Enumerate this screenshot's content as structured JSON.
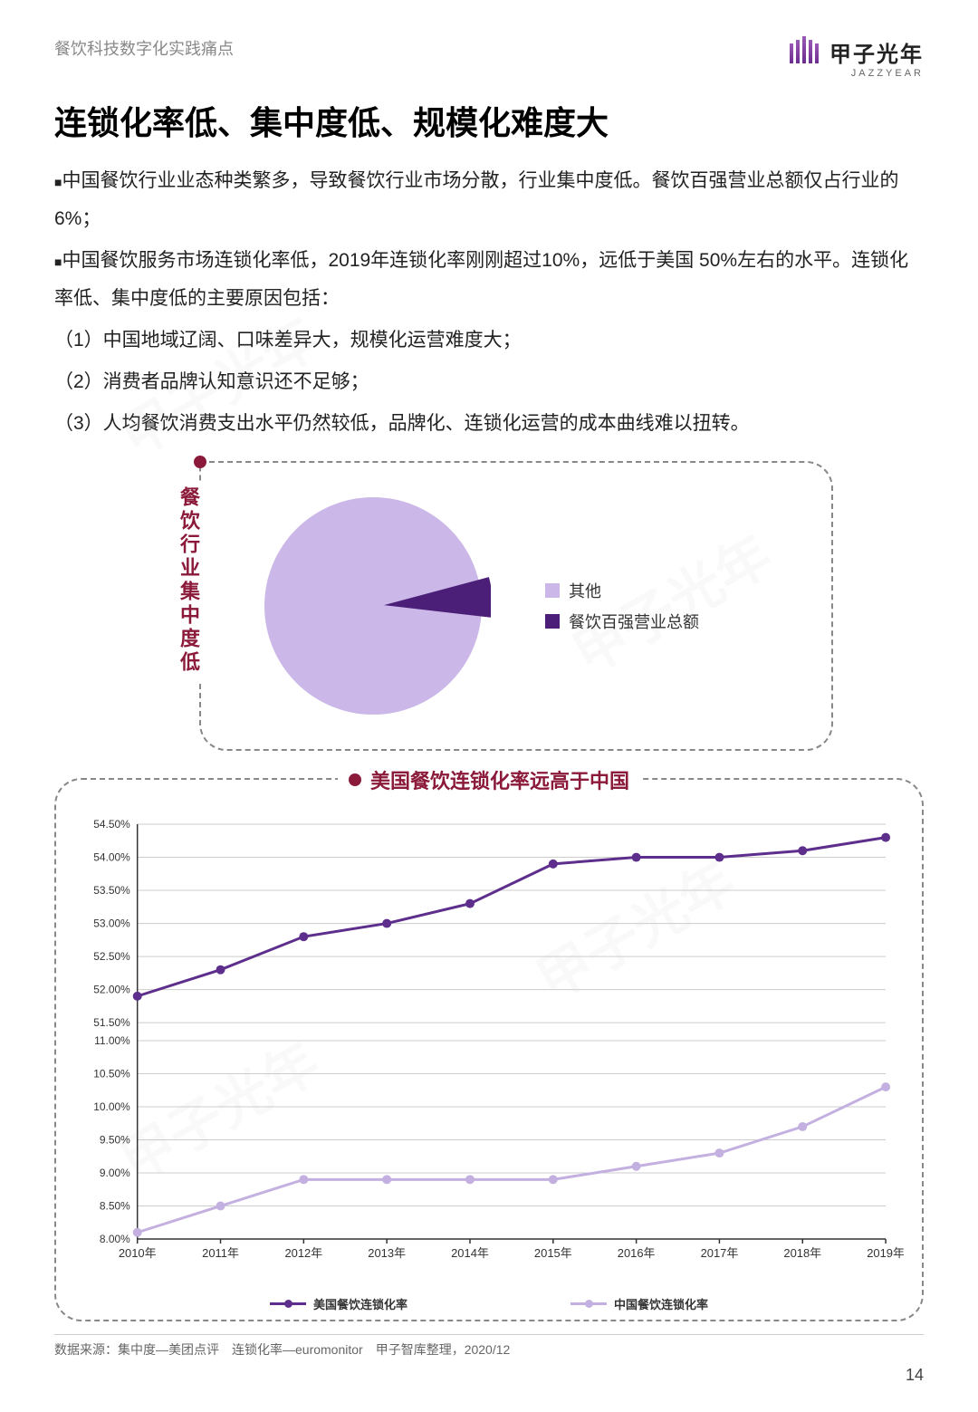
{
  "header": {
    "breadcrumb": "餐饮科技数字化实践痛点",
    "logo_cn": "甲子光年",
    "logo_en": "JAZZYEAR"
  },
  "title": "连锁化率低、集中度低、规模化难度大",
  "paragraphs": {
    "p1": "中国餐饮行业业态种类繁多，导致餐饮行业市场分散，行业集中度低。餐饮百强营业总额仅占行业的6%；",
    "p2": "中国餐饮服务市场连锁化率低，2019年连锁化率刚刚超过10%，远低于美国 50%左右的水平。连锁化率低、集中度低的主要原因包括：",
    "li1": "（1）中国地域辽阔、口味差异大，规模化运营难度大；",
    "li2": "（2）消费者品牌认知意识还不足够；",
    "li3": "（3）人均餐饮消费支出水平仍然较低，品牌化、连锁化运营的成本曲线难以扭转。"
  },
  "pie_chart": {
    "title": "餐饮行业集中度低",
    "type": "pie",
    "slices": [
      {
        "label": "其他",
        "value": 94,
        "color": "#cbb8e8"
      },
      {
        "label": "餐饮百强营业总额",
        "value": 6,
        "color": "#4b1f78"
      }
    ],
    "background_color": "#ffffff",
    "dashed_border_color": "#888888",
    "title_color": "#8b1a3a"
  },
  "line_chart": {
    "title": "美国餐饮连锁化率远高于中国",
    "type": "line",
    "x_labels": [
      "2010年",
      "2011年",
      "2012年",
      "2013年",
      "2014年",
      "2015年",
      "2016年",
      "2017年",
      "2018年",
      "2019年"
    ],
    "y_ticks_upper": [
      "51.50%",
      "52.00%",
      "52.50%",
      "53.00%",
      "53.50%",
      "54.00%",
      "54.50%"
    ],
    "y_ticks_lower": [
      "8.00%",
      "8.50%",
      "9.00%",
      "9.50%",
      "10.00%",
      "10.50%",
      "11.00%"
    ],
    "series": [
      {
        "name": "美国餐饮连锁化率",
        "color": "#5d2e8c",
        "light": false,
        "values_pct": [
          51.9,
          52.3,
          52.8,
          53.0,
          53.3,
          53.9,
          54.0,
          54.0,
          54.1,
          54.3
        ]
      },
      {
        "name": "中国餐饮连锁化率",
        "color": "#c3b0e0",
        "light": true,
        "values_pct": [
          8.1,
          8.5,
          8.9,
          8.9,
          8.9,
          8.9,
          9.1,
          9.3,
          9.7,
          10.3
        ]
      }
    ],
    "grid_color": "#cccccc",
    "axis_color": "#333333",
    "title_color": "#8b1a3a",
    "line_width": 3,
    "marker_radius": 5
  },
  "source": "数据来源：集中度—美团点评　连锁化率—euromonitor　甲子智库整理，2020/12",
  "page_number": "14",
  "watermark": "甲子光年"
}
